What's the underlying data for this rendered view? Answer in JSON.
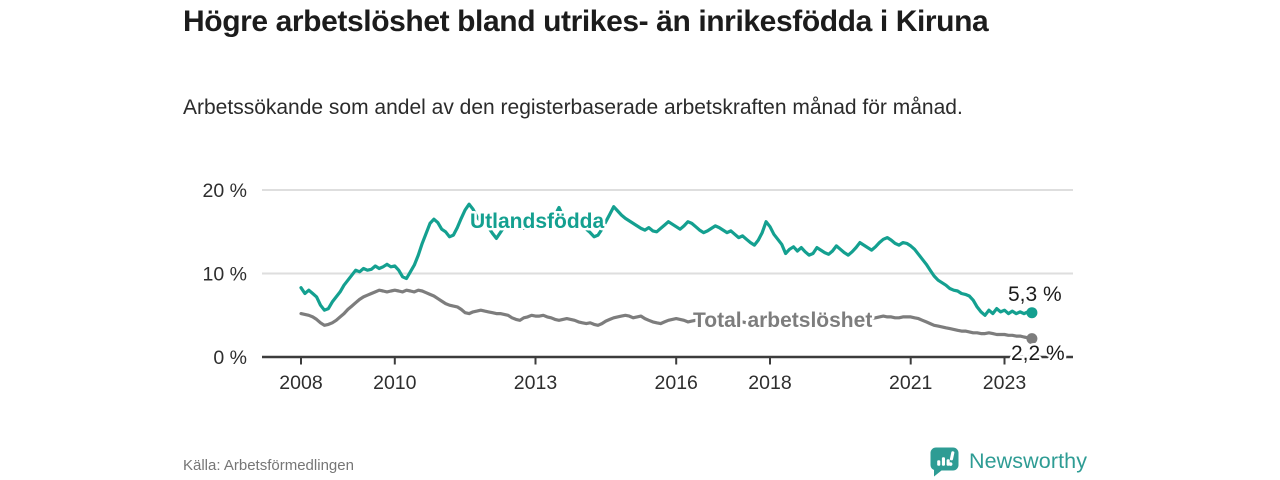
{
  "header": {
    "title": "Högre arbetslöshet bland utrikes- än inrikesfödda i Kiruna",
    "subtitle": "Arbetssökande som andel av den registerbaserade arbetskraften månad för månad."
  },
  "footer": {
    "source": "Källa: Arbetsförmedlingen",
    "brand": "Newsworthy"
  },
  "colors": {
    "accent_teal": "#14a090",
    "series_total_gray": "#7d7d7d",
    "grid": "#dedede",
    "axis": "#3c3c3c",
    "brand_teal": "#2e9c94",
    "title_text": "#1c1c1c",
    "source_text": "#767676"
  },
  "chart_data": {
    "type": "line",
    "frequency": "monthly",
    "x_start": {
      "year": 2008,
      "month": 1
    },
    "x_end": {
      "year": 2023,
      "month": 8
    },
    "xlim": [
      2007.17,
      2024.46
    ],
    "ylim": [
      0,
      21.5
    ],
    "grid": "horizontal",
    "legend": "inline-labels",
    "y_ticks": [
      {
        "value": 0,
        "label": "0 %"
      },
      {
        "value": 10,
        "label": "10 %"
      },
      {
        "value": 20,
        "label": "20 %"
      }
    ],
    "x_ticks": [
      {
        "value": 2008,
        "label": "2008"
      },
      {
        "value": 2010,
        "label": "2010"
      },
      {
        "value": 2013,
        "label": "2013"
      },
      {
        "value": 2016,
        "label": "2016"
      },
      {
        "value": 2018,
        "label": "2018"
      },
      {
        "value": 2021,
        "label": "2021"
      },
      {
        "value": 2023,
        "label": "2023"
      }
    ],
    "series": [
      {
        "name": "Utlandsfödda",
        "color": "#14a090",
        "end_label": "5,3 %",
        "end_value": 5.3,
        "values": [
          8.3,
          7.6,
          8.0,
          7.6,
          7.2,
          6.2,
          5.6,
          5.8,
          6.6,
          7.2,
          7.8,
          8.6,
          9.2,
          9.8,
          10.4,
          10.2,
          10.6,
          10.4,
          10.5,
          10.9,
          10.6,
          10.8,
          11.1,
          10.8,
          10.9,
          10.4,
          9.6,
          9.4,
          10.2,
          11.0,
          12.2,
          13.6,
          14.8,
          16.0,
          16.5,
          16.1,
          15.3,
          15.0,
          14.4,
          14.6,
          15.5,
          16.6,
          17.6,
          18.3,
          17.7,
          16.8,
          16.2,
          15.8,
          15.5,
          14.8,
          14.2,
          14.9,
          15.6,
          16.1,
          15.7,
          16.3,
          15.9,
          15.4,
          15.7,
          16.0,
          16.2,
          15.8,
          15.4,
          15.8,
          16.3,
          17.0,
          17.9,
          16.9,
          16.3,
          16.0,
          15.7,
          15.4,
          15.7,
          15.3,
          14.9,
          14.4,
          14.6,
          15.3,
          16.2,
          17.1,
          18.0,
          17.5,
          17.0,
          16.6,
          16.3,
          16.0,
          15.7,
          15.4,
          15.2,
          15.5,
          15.1,
          15.0,
          15.4,
          15.8,
          16.2,
          15.9,
          15.6,
          15.3,
          15.7,
          16.2,
          16.0,
          15.6,
          15.2,
          14.9,
          15.1,
          15.4,
          15.7,
          15.5,
          15.2,
          14.9,
          15.1,
          14.7,
          14.3,
          14.5,
          14.1,
          13.7,
          13.4,
          14.0,
          14.9,
          16.2,
          15.6,
          14.7,
          14.1,
          13.5,
          12.4,
          12.9,
          13.2,
          12.7,
          13.1,
          12.6,
          12.2,
          12.4,
          13.1,
          12.8,
          12.5,
          12.3,
          12.7,
          13.3,
          12.9,
          12.5,
          12.2,
          12.6,
          13.1,
          13.7,
          13.4,
          13.1,
          12.8,
          13.2,
          13.7,
          14.1,
          14.3,
          14.0,
          13.6,
          13.4,
          13.7,
          13.6,
          13.3,
          12.9,
          12.3,
          11.7,
          11.1,
          10.4,
          9.7,
          9.2,
          8.9,
          8.6,
          8.2,
          8.0,
          7.9,
          7.6,
          7.5,
          7.3,
          6.8,
          6.0,
          5.4,
          5.0,
          5.6,
          5.2,
          5.8,
          5.4,
          5.6,
          5.2,
          5.5,
          5.2,
          5.4,
          5.2,
          5.4,
          5.3
        ]
      },
      {
        "name": "Total arbetslöshet",
        "color": "#7d7d7d",
        "end_label": "2,2 %",
        "end_value": 2.2,
        "values": [
          5.2,
          5.1,
          5.0,
          4.8,
          4.5,
          4.1,
          3.8,
          3.9,
          4.1,
          4.4,
          4.8,
          5.2,
          5.7,
          6.1,
          6.5,
          6.9,
          7.2,
          7.4,
          7.6,
          7.8,
          8.0,
          7.9,
          7.8,
          7.9,
          8.0,
          7.9,
          7.8,
          8.0,
          7.9,
          7.8,
          8.0,
          7.9,
          7.7,
          7.5,
          7.3,
          7.0,
          6.7,
          6.4,
          6.2,
          6.1,
          6.0,
          5.7,
          5.3,
          5.2,
          5.4,
          5.5,
          5.6,
          5.5,
          5.4,
          5.3,
          5.2,
          5.2,
          5.1,
          5.0,
          4.7,
          4.5,
          4.4,
          4.7,
          4.8,
          5.0,
          4.9,
          4.9,
          5.0,
          4.8,
          4.7,
          4.5,
          4.4,
          4.5,
          4.6,
          4.5,
          4.4,
          4.2,
          4.1,
          4.0,
          4.1,
          3.9,
          3.8,
          4.0,
          4.3,
          4.5,
          4.7,
          4.8,
          4.9,
          5.0,
          4.9,
          4.7,
          4.8,
          4.9,
          4.6,
          4.4,
          4.2,
          4.1,
          4.0,
          4.2,
          4.4,
          4.5,
          4.6,
          4.5,
          4.4,
          4.2,
          4.3,
          4.4,
          4.2,
          4.0,
          4.1,
          4.3,
          4.5,
          4.6,
          4.6,
          4.5,
          4.4,
          4.5,
          4.3,
          4.2,
          4.1,
          4.0,
          4.1,
          4.2,
          4.4,
          4.5,
          4.5,
          4.4,
          4.3,
          4.2,
          4.1,
          4.0,
          4.1,
          4.2,
          4.3,
          4.2,
          4.1,
          4.2,
          4.3,
          4.4,
          4.3,
          4.2,
          4.3,
          4.4,
          4.3,
          4.2,
          4.3,
          4.4,
          4.5,
          4.6,
          4.6,
          4.5,
          4.6,
          4.7,
          4.8,
          4.9,
          4.8,
          4.8,
          4.7,
          4.7,
          4.8,
          4.8,
          4.8,
          4.7,
          4.6,
          4.4,
          4.2,
          4.0,
          3.8,
          3.7,
          3.6,
          3.5,
          3.4,
          3.3,
          3.2,
          3.1,
          3.1,
          3.0,
          2.9,
          2.9,
          2.8,
          2.8,
          2.9,
          2.8,
          2.7,
          2.7,
          2.7,
          2.6,
          2.6,
          2.5,
          2.5,
          2.4,
          2.3,
          2.2
        ]
      }
    ]
  }
}
